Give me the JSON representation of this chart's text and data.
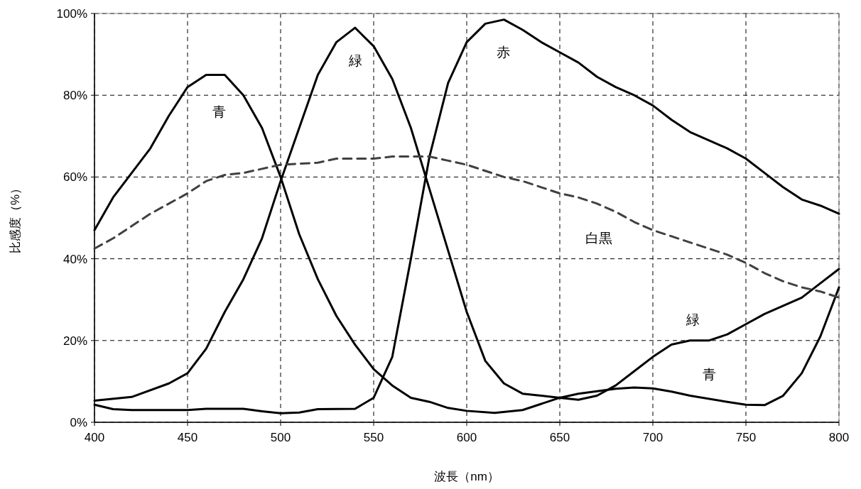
{
  "chart_data": {
    "type": "line",
    "xlabel": "波長（nm）",
    "ylabel": "比感度（%）",
    "xlim": [
      400,
      800
    ],
    "xticks": [
      400,
      450,
      500,
      550,
      600,
      650,
      700,
      750,
      800
    ],
    "ylim": [
      0,
      100
    ],
    "yticks": [
      {
        "value": 0,
        "label": "0%"
      },
      {
        "value": 20,
        "label": "20%"
      },
      {
        "value": 40,
        "label": "40%"
      },
      {
        "value": 60,
        "label": "60%"
      },
      {
        "value": 80,
        "label": "80%"
      },
      {
        "value": 100,
        "label": "100%"
      }
    ],
    "grid": true,
    "marker": "none",
    "series": [
      {
        "color": "#000000",
        "line_style": "solid",
        "x": [
          400,
          410,
          420,
          430,
          440,
          450,
          460,
          470,
          480,
          490,
          500,
          510,
          520,
          530,
          540,
          550,
          560,
          570,
          580,
          590,
          600,
          615,
          630,
          650,
          660,
          680,
          690,
          700,
          710,
          720,
          740,
          750,
          760,
          770,
          780,
          790,
          800
        ],
        "values": [
          47,
          55,
          61,
          67,
          75,
          82,
          85,
          85,
          80,
          72,
          60,
          46,
          35,
          26,
          19,
          13,
          9,
          6,
          5,
          3.5,
          2.8,
          2.3,
          3,
          6,
          7,
          8.2,
          8.5,
          8.3,
          7.5,
          6.5,
          5,
          4.3,
          4.2,
          6.5,
          12,
          21,
          33
        ]
      },
      {
        "color": "#000000",
        "line_style": "solid",
        "x": [
          400,
          420,
          440,
          450,
          460,
          470,
          480,
          490,
          500,
          510,
          520,
          530,
          540,
          550,
          560,
          570,
          580,
          590,
          600,
          610,
          620,
          630,
          640,
          650,
          660,
          670,
          680,
          690,
          700,
          710,
          720,
          730,
          740,
          750,
          760,
          770,
          780,
          790,
          800
        ],
        "values": [
          5.3,
          6.2,
          9.5,
          12,
          18,
          27,
          35,
          45,
          59,
          72,
          85,
          93,
          96.5,
          92,
          84,
          72,
          57,
          42,
          27,
          15,
          9.5,
          7,
          6.5,
          6,
          5.5,
          6.5,
          9,
          12.5,
          16,
          19,
          20,
          20,
          21.5,
          24,
          26.5,
          28.5,
          30.5,
          34,
          37.5
        ]
      },
      {
        "color": "#000000",
        "line_style": "solid",
        "x": [
          400,
          410,
          420,
          450,
          460,
          480,
          490,
          500,
          510,
          520,
          540,
          550,
          560,
          570,
          580,
          590,
          600,
          610,
          620,
          630,
          640,
          650,
          660,
          670,
          680,
          690,
          700,
          710,
          720,
          730,
          740,
          750,
          760,
          770,
          780,
          790,
          800
        ],
        "values": [
          4.3,
          3.2,
          3,
          3,
          3.3,
          3.3,
          2.7,
          2.2,
          2.4,
          3.2,
          3.3,
          6,
          16,
          40,
          65,
          83,
          93,
          97.5,
          98.5,
          96,
          93,
          90.5,
          88,
          84.5,
          82,
          80,
          77.5,
          74,
          71,
          69,
          67,
          64.5,
          61,
          57.5,
          54.5,
          53,
          51
        ]
      },
      {
        "color": "#404040",
        "line_style": "dashed",
        "x": [
          400,
          410,
          420,
          430,
          440,
          450,
          460,
          470,
          480,
          490,
          500,
          520,
          530,
          550,
          560,
          580,
          590,
          600,
          610,
          620,
          630,
          640,
          650,
          660,
          670,
          680,
          690,
          700,
          710,
          720,
          730,
          740,
          750,
          760,
          770,
          780,
          790,
          800
        ],
        "values": [
          42.5,
          45,
          48,
          51,
          53.5,
          56,
          59,
          60.5,
          61,
          62,
          63,
          63.5,
          64.5,
          64.5,
          65,
          65,
          64,
          63,
          61.5,
          60,
          59,
          57.5,
          56,
          55,
          53.5,
          51.5,
          49,
          47,
          45.5,
          44,
          42.5,
          41,
          39,
          36.5,
          34.5,
          33,
          32,
          30.5
        ]
      }
    ],
    "annotations": [
      "青",
      "緑",
      "赤",
      "白黒",
      "緑",
      "青"
    ]
  }
}
